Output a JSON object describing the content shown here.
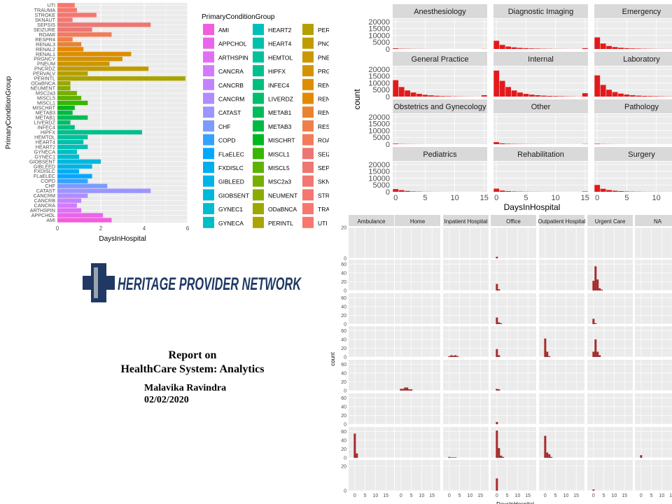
{
  "chart_data": [
    {
      "type": "bar",
      "orientation": "horizontal",
      "xlabel": "DaysInHospital",
      "ylabel": "PrimaryConditionGroup",
      "xlim": [
        0,
        6
      ],
      "x_ticks": [
        "0",
        "2",
        "4",
        "6"
      ],
      "legend_title": "PrimaryConditionGroup",
      "legend_position": "right",
      "categories": [
        "UTI",
        "TRAUMA",
        "STROKE",
        "SKNAUT",
        "SEPSIS",
        "SEIZURE",
        "ROAMI",
        "RESPR4",
        "RENAL3",
        "RENAL2",
        "RENAL1",
        "PRGNCY",
        "PNEUM",
        "PNCRDZ",
        "PERVALV",
        "PERINTL",
        "ODaBNCA",
        "NEUMENT",
        "MSC2a3",
        "MISCL5",
        "MISCL1",
        "MISCHRT",
        "METAB3",
        "METAB1",
        "LIVERDZ",
        "INFEC4",
        "HIPFX",
        "HEMTOL",
        "HEART4",
        "HEART2",
        "GYNECA",
        "GYNEC1",
        "GIOBSENT",
        "GIBLEED",
        "FXDISLC",
        "FLaELEC",
        "COPD",
        "CHF",
        "CATAST",
        "CANCRM",
        "CANCRB",
        "CANCRA",
        "ARTHSPIN",
        "APPCHOL",
        "AMI"
      ],
      "values": [
        0.8,
        0.9,
        1.8,
        0.7,
        4.3,
        1.6,
        2.5,
        0.7,
        1.1,
        1.2,
        3.4,
        3.0,
        2.4,
        4.2,
        1.4,
        5.9,
        0.6,
        0.6,
        0.9,
        1.1,
        1.4,
        0.8,
        0.7,
        1.4,
        0.6,
        0.8,
        3.9,
        1.4,
        1.2,
        1.4,
        0.9,
        1.0,
        2.0,
        1.6,
        1.0,
        1.6,
        1.4,
        2.3,
        4.3,
        1.4,
        1.1,
        0.9,
        1.1,
        2.1,
        2.5
      ],
      "colors": [
        "#F8766D",
        "#F7766E",
        "#F4766F",
        "#F27770",
        "#EE7772",
        "#EB7774",
        "#F37B59",
        "#EF7F4A",
        "#EA8331",
        "#E38900",
        "#DD8D00",
        "#D49200",
        "#CB9600",
        "#C09B00",
        "#B59F00",
        "#A9A400",
        "#9AA800",
        "#8AAB00",
        "#76AF00",
        "#5EB300",
        "#38B600",
        "#00B81F",
        "#00BA42",
        "#00BC59",
        "#00BE6C",
        "#00BF7D",
        "#00C08E",
        "#00C19C",
        "#00C1AB",
        "#00C0B8",
        "#00BFC4",
        "#00BCD1",
        "#00B8DC",
        "#00B4E7",
        "#00AFF0",
        "#00A9FF",
        "#35A2FF",
        "#7C9BFF",
        "#9C95FF",
        "#B18CFF",
        "#C383FF",
        "#D37AFF",
        "#E06FF6",
        "#EA65EC",
        "#F35EDD"
      ]
    },
    {
      "type": "bar",
      "facet": "Specialty",
      "xlabel": "DaysInHospital",
      "ylabel": "count",
      "ylim": [
        0,
        22000
      ],
      "y_ticks": [
        "0",
        "5000",
        "10000",
        "15000",
        "20000"
      ],
      "x_ticks": [
        "0",
        "5",
        "10",
        "15"
      ],
      "x": [
        0,
        1,
        2,
        3,
        4,
        5,
        6,
        7,
        8,
        9,
        10,
        11,
        12,
        13,
        14,
        15
      ],
      "bar_color": "#E31A1C",
      "panels": [
        {
          "name": "Anesthesiology",
          "values": [
            500,
            200,
            150,
            100,
            80,
            60,
            40,
            30,
            20,
            10,
            10,
            10,
            10,
            10,
            10,
            80
          ]
        },
        {
          "name": "Diagnostic Imaging",
          "values": [
            6000,
            3000,
            1800,
            1200,
            800,
            600,
            400,
            300,
            200,
            150,
            100,
            80,
            60,
            50,
            40,
            600
          ]
        },
        {
          "name": "Emergency",
          "values": [
            8500,
            4000,
            2200,
            1400,
            900,
            600,
            400,
            300,
            200,
            150,
            100,
            80,
            60,
            50,
            40,
            500
          ]
        },
        {
          "name": "General Practice",
          "values": [
            12000,
            7000,
            4500,
            3000,
            2000,
            1300,
            900,
            600,
            400,
            300,
            200,
            150,
            100,
            80,
            60,
            1000
          ]
        },
        {
          "name": "Internal",
          "values": [
            19000,
            11500,
            7000,
            4500,
            3000,
            2000,
            1400,
            1000,
            700,
            500,
            400,
            300,
            200,
            150,
            100,
            2500
          ]
        },
        {
          "name": "Laboratory",
          "values": [
            15500,
            8500,
            5000,
            3300,
            2200,
            1500,
            1000,
            700,
            500,
            400,
            300,
            200,
            150,
            100,
            80,
            1500
          ]
        },
        {
          "name": "Obstetrics and Gynecology",
          "values": [
            400,
            150,
            100,
            60,
            40,
            30,
            20,
            10,
            10,
            10,
            5,
            5,
            5,
            5,
            5,
            50
          ]
        },
        {
          "name": "Other",
          "values": [
            1500,
            600,
            300,
            200,
            150,
            100,
            80,
            60,
            40,
            30,
            20,
            20,
            10,
            10,
            10,
            150
          ]
        },
        {
          "name": "Pathology",
          "values": [
            300,
            120,
            80,
            50,
            30,
            20,
            15,
            10,
            10,
            5,
            5,
            5,
            5,
            5,
            5,
            30
          ]
        },
        {
          "name": "Pediatrics",
          "values": [
            2000,
            1200,
            600,
            300,
            200,
            100,
            80,
            50,
            30,
            20,
            10,
            10,
            10,
            10,
            10,
            50
          ]
        },
        {
          "name": "Rehabilitation",
          "values": [
            2300,
            900,
            500,
            300,
            200,
            150,
            100,
            80,
            60,
            40,
            30,
            20,
            20,
            10,
            10,
            300
          ]
        },
        {
          "name": "Surgery",
          "values": [
            5000,
            2200,
            1300,
            800,
            500,
            300,
            200,
            150,
            100,
            80,
            60,
            50,
            40,
            30,
            20,
            300
          ]
        }
      ]
    },
    {
      "type": "bar",
      "facet": "PlaceSvc",
      "xlabel": "DaysInHospital",
      "ylabel": "count",
      "bar_color": "#A52A2A",
      "columns": [
        "Ambulance",
        "Home",
        "Inpatient Hospital",
        "Office",
        "Outpatient Hospital",
        "Urgent Care",
        "NA"
      ],
      "x_ticks": [
        "0",
        "5",
        "10",
        "15"
      ],
      "rows": [
        {
          "ymax": 20,
          "y_ticks": [
            "0",
            "20"
          ],
          "cells": [
            [],
            [],
            [],
            [
              {
                "x": 0,
                "h": 1
              }
            ],
            [],
            [],
            []
          ]
        },
        {
          "ymax": 70,
          "y_ticks": [
            "0",
            "20",
            "40",
            "60"
          ],
          "cells": [
            [],
            [],
            [],
            [
              {
                "x": 0,
                "h": 15
              },
              {
                "x": 1,
                "h": 3
              }
            ],
            [],
            [
              {
                "x": 0,
                "h": 22
              },
              {
                "x": 1,
                "h": 55
              },
              {
                "x": 2,
                "h": 25
              },
              {
                "x": 3,
                "h": 5
              },
              {
                "x": 4,
                "h": 2
              }
            ],
            []
          ]
        },
        {
          "ymax": 70,
          "y_ticks": [
            "0",
            "20",
            "40",
            "60"
          ],
          "cells": [
            [],
            [],
            [],
            [
              {
                "x": 0,
                "h": 15
              },
              {
                "x": 1,
                "h": 4
              },
              {
                "x": 2,
                "h": 2
              }
            ],
            [],
            [
              {
                "x": 0,
                "h": 12
              },
              {
                "x": 1,
                "h": 2
              }
            ],
            []
          ]
        },
        {
          "ymax": 70,
          "y_ticks": [
            "0",
            "20",
            "40",
            "60"
          ],
          "cells": [
            [],
            [],
            [
              {
                "x": 0,
                "h": 2
              },
              {
                "x": 1,
                "h": 4
              },
              {
                "x": 2,
                "h": 3
              },
              {
                "x": 3,
                "h": 4
              },
              {
                "x": 4,
                "h": 2
              }
            ],
            [
              {
                "x": 0,
                "h": 18
              },
              {
                "x": 1,
                "h": 4
              }
            ],
            [
              {
                "x": 0,
                "h": 42
              },
              {
                "x": 1,
                "h": 12
              },
              {
                "x": 2,
                "h": 2
              }
            ],
            [
              {
                "x": 0,
                "h": 12
              },
              {
                "x": 1,
                "h": 40
              },
              {
                "x": 2,
                "h": 12
              },
              {
                "x": 3,
                "h": 4
              }
            ],
            []
          ]
        },
        {
          "ymax": 70,
          "y_ticks": [
            "0",
            "20",
            "40",
            "60"
          ],
          "cells": [
            [],
            [
              {
                "x": 0,
                "h": 4
              },
              {
                "x": 1,
                "h": 4
              },
              {
                "x": 2,
                "h": 7
              },
              {
                "x": 3,
                "h": 7
              },
              {
                "x": 4,
                "h": 3
              },
              {
                "x": 5,
                "h": 3
              }
            ],
            [],
            [
              {
                "x": 0,
                "h": 4
              },
              {
                "x": 1,
                "h": 3
              }
            ],
            [],
            [],
            []
          ]
        },
        {
          "ymax": 70,
          "y_ticks": [
            "0",
            "20",
            "40",
            "60"
          ],
          "cells": [
            [],
            [],
            [],
            [
              {
                "x": 0,
                "h": 5
              }
            ],
            [],
            [],
            []
          ]
        },
        {
          "ymax": 70,
          "y_ticks": [
            "0",
            "20",
            "40",
            "60"
          ],
          "cells": [
            [
              {
                "x": 0,
                "h": 55
              },
              {
                "x": 1,
                "h": 10
              }
            ],
            [],
            [
              {
                "x": 0,
                "h": 2
              },
              {
                "x": 1,
                "h": 1
              },
              {
                "x": 2,
                "h": 1
              },
              {
                "x": 3,
                "h": 1
              }
            ],
            [
              {
                "x": 0,
                "h": 62
              },
              {
                "x": 1,
                "h": 22
              },
              {
                "x": 2,
                "h": 5
              },
              {
                "x": 3,
                "h": 2
              }
            ],
            [
              {
                "x": 0,
                "h": 50
              },
              {
                "x": 1,
                "h": 12
              },
              {
                "x": 2,
                "h": 8
              },
              {
                "x": 3,
                "h": 2
              }
            ],
            [],
            [
              {
                "x": 0,
                "h": 6
              }
            ]
          ]
        },
        {
          "ymax": 25,
          "y_ticks": [
            "0",
            "20"
          ],
          "cells": [
            [],
            [],
            [],
            [
              {
                "x": 0,
                "h": 10
              }
            ],
            [],
            [
              {
                "x": 0,
                "h": 1
              }
            ],
            []
          ]
        }
      ]
    }
  ],
  "logo": {
    "text": "HERITAGE PROVIDER NETWORK",
    "color": "#1F3964",
    "accent": "#9AA3AE"
  },
  "report": {
    "title_line1": "Report on",
    "title_line2": "HealthCare System: Analytics",
    "author": "Malavika Ravindra",
    "date": "02/02/2020"
  }
}
